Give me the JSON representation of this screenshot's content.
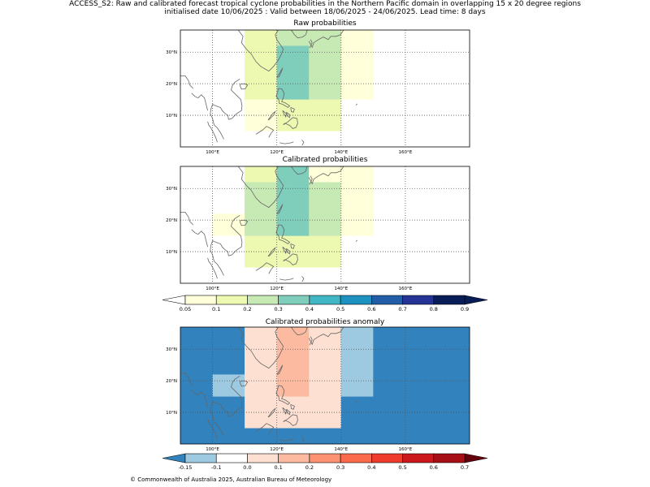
{
  "figure": {
    "title_line1": "ACCESS_S2: Raw and calibrated forecast tropical cyclone probabilities in the Northern Pacific domain in overlapping 15 x 20 degree regions",
    "title_line2": "initialised date 10/06/2025 :  Valid between 18/06/2025 - 24/06/2025. Lead time: 8 days",
    "footer": "© Commonwealth of Australia 2025, Australian Bureau of Meteorology"
  },
  "axes": {
    "lon_ticks": [
      "100°E",
      "120°E",
      "140°E",
      "160°E"
    ],
    "lat_ticks": [
      "10°N",
      "20°N",
      "30°N"
    ],
    "lon_values": [
      100,
      120,
      140,
      160
    ],
    "lat_values": [
      10,
      20,
      30
    ],
    "lon_range": [
      90,
      180
    ],
    "lat_range": [
      0,
      37
    ],
    "grid": true
  },
  "panels": [
    {
      "id": "raw",
      "title": "Raw probabilities",
      "scale": "prob",
      "cells": [
        {
          "lon": [
            110,
            130
          ],
          "lat": [
            15,
            37
          ],
          "value": 0.15
        },
        {
          "lon": [
            130,
            150
          ],
          "lat": [
            15,
            37
          ],
          "value": 0.075
        },
        {
          "lon": [
            110,
            130
          ],
          "lat": [
            5,
            15
          ],
          "value": 0.075
        },
        {
          "lon": [
            120,
            140
          ],
          "lat": [
            5,
            15
          ],
          "value": 0.15
        },
        {
          "lon": [
            120,
            140
          ],
          "lat": [
            15,
            37
          ],
          "value": 0.25
        },
        {
          "lon": [
            120,
            130
          ],
          "lat": [
            15,
            32
          ],
          "value": 0.35
        }
      ]
    },
    {
      "id": "calibrated",
      "title": "Calibrated probabilities",
      "scale": "prob",
      "cells": [
        {
          "lon": [
            100,
            120
          ],
          "lat": [
            15,
            22
          ],
          "value": 0.075
        },
        {
          "lon": [
            110,
            130
          ],
          "lat": [
            15,
            37
          ],
          "value": 0.15
        },
        {
          "lon": [
            130,
            150
          ],
          "lat": [
            15,
            37
          ],
          "value": 0.075
        },
        {
          "lon": [
            110,
            140
          ],
          "lat": [
            5,
            15
          ],
          "value": 0.15
        },
        {
          "lon": [
            110,
            140
          ],
          "lat": [
            15,
            32
          ],
          "value": 0.25
        },
        {
          "lon": [
            120,
            130
          ],
          "lat": [
            15,
            37
          ],
          "value": 0.35
        }
      ]
    },
    {
      "id": "anomaly",
      "title": "Calibrated probabilities anomaly",
      "scale": "anom",
      "background_value": -0.2,
      "cells": [
        {
          "lon": [
            110,
            140
          ],
          "lat": [
            5,
            37
          ],
          "value": 0.0
        },
        {
          "lon": [
            100,
            110
          ],
          "lat": [
            15,
            22
          ],
          "value": -0.12
        },
        {
          "lon": [
            140,
            150
          ],
          "lat": [
            15,
            37
          ],
          "value": -0.12
        },
        {
          "lon": [
            110,
            140
          ],
          "lat": [
            15,
            32
          ],
          "value": 0.05
        },
        {
          "lon": [
            120,
            130
          ],
          "lat": [
            15,
            37
          ],
          "value": 0.15
        }
      ]
    }
  ],
  "colorbars": {
    "prob": {
      "levels": [
        0.05,
        0.1,
        0.2,
        0.3,
        0.4,
        0.5,
        0.6,
        0.7,
        0.8,
        0.9
      ],
      "labels": [
        "0.05",
        "0.1",
        "0.2",
        "0.3",
        "0.4",
        "0.5",
        "0.6",
        "0.7",
        "0.8",
        "0.9"
      ],
      "colors": [
        "#ffffd9",
        "#edf8b1",
        "#c7e9b4",
        "#7fcdbb",
        "#41b6c4",
        "#1d91c0",
        "#225ea8",
        "#253494",
        "#081d58"
      ],
      "under": "#ffffff",
      "over": "#081d58"
    },
    "anom": {
      "levels": [
        -0.15,
        -0.1,
        0.0,
        0.1,
        0.2,
        0.3,
        0.4,
        0.5,
        0.6,
        0.7
      ],
      "labels": [
        "-0.15",
        "-0.1",
        "0.0",
        "0.1",
        "0.2",
        "0.3",
        "0.4",
        "0.5",
        "0.6",
        "0.7"
      ],
      "colors": [
        "#9ecae1",
        "#ffffff",
        "#fee0d2",
        "#fcbba1",
        "#fc9272",
        "#fb6a4a",
        "#ef3b2c",
        "#cb181d",
        "#a50f15"
      ],
      "under": "#3182bd",
      "over": "#67000d"
    }
  },
  "map_colors": {
    "coastline": "#666666",
    "grid": "#555555",
    "frame": "#000000"
  }
}
